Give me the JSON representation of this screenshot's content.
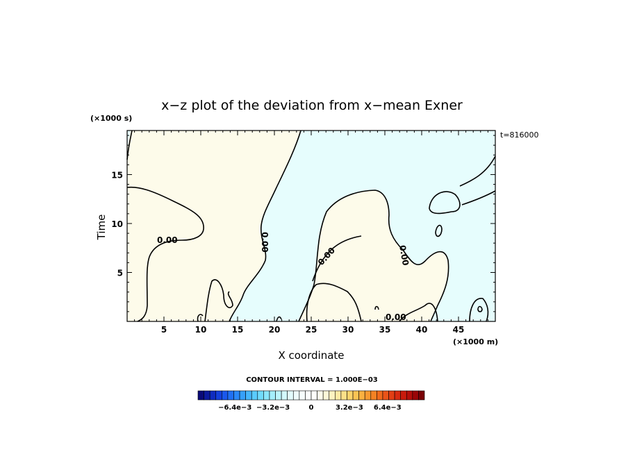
{
  "chart_data": {
    "type": "contour",
    "title": "x−z plot of the deviation from x−mean Exner",
    "xlabel": "X coordinate",
    "ylabel": "Time",
    "x_unit": "(×1000 m)",
    "y_unit": "(×1000 s)",
    "time_stamp": "t=816000",
    "xlim": [
      0,
      50
    ],
    "ylim": [
      0,
      19.5
    ],
    "x_ticks": [
      5,
      10,
      15,
      20,
      25,
      30,
      35,
      40,
      45
    ],
    "x_tick_labels": [
      "5",
      "10",
      "15",
      "20",
      "25",
      "30",
      "35",
      "40",
      "45"
    ],
    "y_ticks": [
      5,
      10,
      15
    ],
    "y_tick_labels": [
      "5",
      "10",
      "15"
    ],
    "contour_level_labels": [
      "0.00",
      "0.00",
      "0.00",
      "0.00",
      "0.00"
    ],
    "colors": {
      "positive_fill": "#fdfbea",
      "negative_fill": "#e6fdfd",
      "contour_line": "#000000"
    },
    "colorbar": {
      "contour_interval_text": "CONTOUR INTERVAL = 1.000E−03",
      "tick_labels": [
        "−6.4e−3",
        "−3.2e−3",
        "0",
        "3.2e−3",
        "6.4e−3"
      ],
      "tick_values": [
        -0.0064,
        -0.0032,
        0,
        0.0032,
        0.0064
      ],
      "range": [
        -0.0095,
        0.0095
      ],
      "n_bins": 38,
      "colors": [
        "#0a0a78",
        "#0c1a9e",
        "#0f2cc0",
        "#1440dc",
        "#1a58ec",
        "#2070f4",
        "#2a88f8",
        "#36a0fb",
        "#46b6fc",
        "#5acbfd",
        "#70dbfd",
        "#8ae6fd",
        "#a4eefd",
        "#bcf4fd",
        "#d2f8fd",
        "#e2fbfd",
        "#eefcfd",
        "#f6fdfd",
        "#fcfefe",
        "#fefefa",
        "#fefcec",
        "#fef8d8",
        "#fef2c0",
        "#feeaa4",
        "#fee088",
        "#fed46c",
        "#fcc454",
        "#fab040",
        "#f89a30",
        "#f48224",
        "#f06a1c",
        "#ea5418",
        "#e23e14",
        "#d82a10",
        "#c81a0c",
        "#b40e0a",
        "#9a0608",
        "#7a0206"
      ]
    }
  }
}
